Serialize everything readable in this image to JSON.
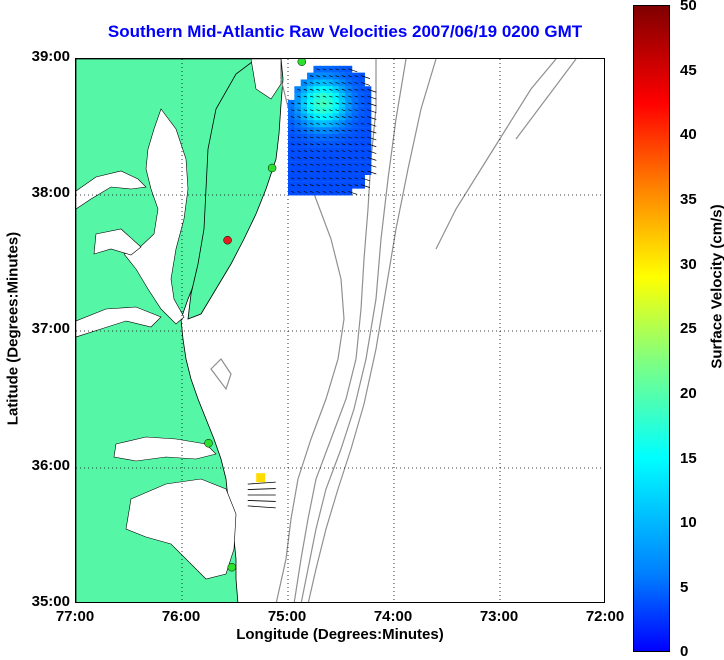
{
  "title": "Southern Mid-Atlantic Raw Velocities 2007/06/19 0200 GMT",
  "x_axis": {
    "label": "Longitude (Degrees:Minutes)",
    "ticks": [
      "77:00",
      "76:00",
      "75:00",
      "74:00",
      "73:00",
      "72:00"
    ]
  },
  "y_axis": {
    "label": "Latitude (Degrees:Minutes)",
    "ticks": [
      "39:00",
      "38:00",
      "37:00",
      "36:00",
      "35:00"
    ]
  },
  "colorbar": {
    "label": "Surface Velocity (cm/s)",
    "ticks": [
      "50",
      "45",
      "40",
      "35",
      "30",
      "25",
      "20",
      "15",
      "10",
      "5",
      "0"
    ],
    "range": [
      0,
      50
    ],
    "colormap": "jet"
  },
  "map": {
    "lon_range": [
      -77,
      -72
    ],
    "lat_range": [
      35,
      39
    ],
    "grid": "dotted",
    "land_color": "#55f7a6",
    "bathymetry_color": "#909090",
    "stations": [
      {
        "lon": -74.87,
        "lat": 38.98,
        "color": "#2de02d"
      },
      {
        "lon": -75.15,
        "lat": 38.2,
        "color": "#2de02d"
      },
      {
        "lon": -75.57,
        "lat": 37.67,
        "color": "#e02020"
      },
      {
        "lon": -75.75,
        "lat": 36.18,
        "color": "#2de02d"
      },
      {
        "lon": -75.53,
        "lat": 35.27,
        "color": "#2de02d"
      }
    ],
    "velocity_regions": [
      {
        "name": "northern-hf-radar-field",
        "lon_range": [
          -75.0,
          -74.22
        ],
        "lat_range": [
          38.05,
          38.95
        ],
        "speeds_cm_s": "8-25"
      },
      {
        "name": "southern-hf-radar-field",
        "lon_range": [
          -75.35,
          -75.1
        ],
        "lat_range": [
          35.7,
          35.95
        ],
        "speeds_cm_s": "30-35"
      }
    ]
  }
}
